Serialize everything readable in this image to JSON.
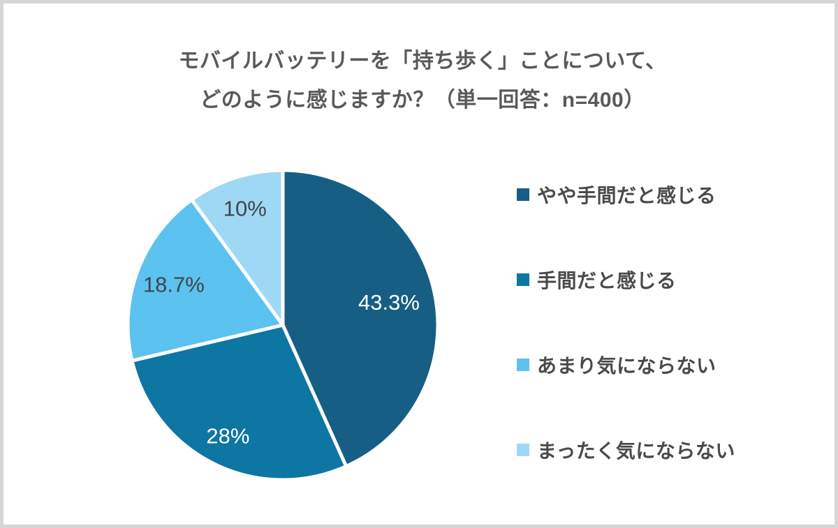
{
  "page": {
    "background": "#ffffff",
    "frame_border_color": "#d6d6d6"
  },
  "title": {
    "line1": "モバイルバッテリーを「持ち歩く」ことについて、",
    "line2": "どのように感じますか？（単一回答：n=400）",
    "color": "#595959"
  },
  "legend": {
    "text_color": "#4a4a4a"
  },
  "chart_data": {
    "type": "pie",
    "title": "モバイルバッテリーを「持ち歩く」ことについて、どのように感じますか？（単一回答：n=400）",
    "sample_note": "単一回答：n=400",
    "n": 400,
    "start_angle_deg": 0,
    "direction": "clockwise",
    "legend_position": "right",
    "stroke_color": "#ffffff",
    "slices": [
      {
        "label": "やや手間だと感じる",
        "value": 43.3,
        "display": "43.3%",
        "color": "#175e84",
        "label_color": "#ffffff"
      },
      {
        "label": "手間だと感じる",
        "value": 28,
        "display": "28%",
        "color": "#0e76a3",
        "label_color": "#ffffff"
      },
      {
        "label": "あまり気にならない",
        "value": 18.7,
        "display": "18.7%",
        "color": "#5cc2ef",
        "label_color": "#3f454b"
      },
      {
        "label": "まったく気にならない",
        "value": 10,
        "display": "10%",
        "color": "#9fd8f5",
        "label_color": "#3f454b"
      }
    ]
  }
}
